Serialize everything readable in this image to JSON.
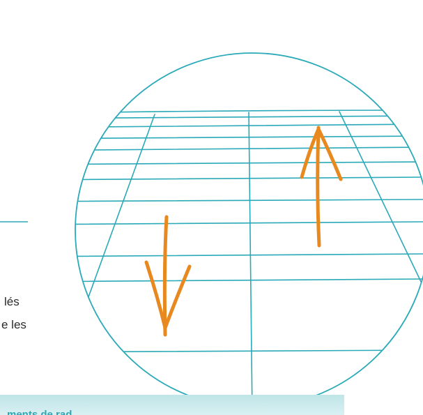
{
  "text_fragments": [
    "lés",
    "e les"
  ],
  "footer_band": {
    "title": "ments de rad..."
  },
  "colors": {
    "grid_line": "#2aa9b8",
    "arrows": "#e8891f",
    "band_top": "#bfe5e8",
    "band_bottom": "#d9f0f2",
    "band_text": "#2ea7b3"
  },
  "icons": [
    "arrow-down-icon",
    "arrow-up-icon"
  ]
}
